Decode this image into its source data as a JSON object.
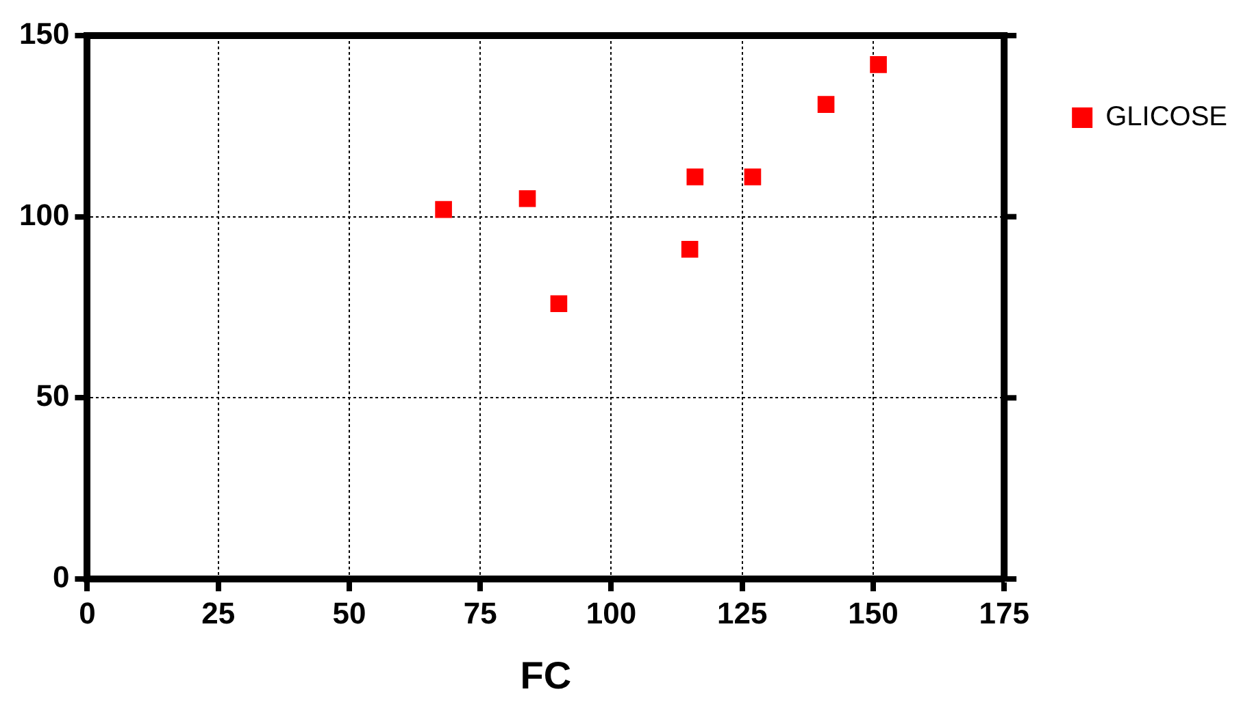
{
  "chart_data": {
    "type": "scatter",
    "xlabel": "FC",
    "series": [
      {
        "name": "GLICOSE",
        "color": "#ff0000",
        "x": [
          68,
          84,
          90,
          115,
          116,
          127,
          141,
          151
        ],
        "values": [
          102,
          105,
          76,
          91,
          111,
          111,
          131,
          142
        ]
      }
    ],
    "xlim": [
      0,
      175
    ],
    "xticks": [
      0,
      25,
      50,
      75,
      100,
      125,
      150,
      175
    ],
    "ylim": [
      0,
      150
    ],
    "yticks": [
      0,
      50,
      100,
      150
    ],
    "grid": true,
    "legend": "top right",
    "marker": "square"
  }
}
